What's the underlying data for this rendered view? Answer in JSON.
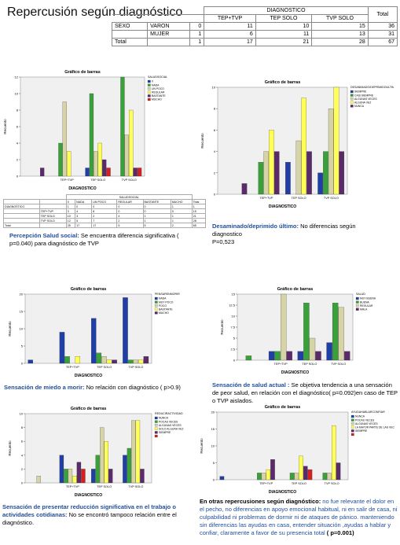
{
  "title": "Repercusión según diagnóstico",
  "crosstab": {
    "group_header": "DIAGNOSTICO",
    "columns": [
      "",
      "",
      "",
      "TEP+TVP",
      "TEP SOLO",
      "TVP SOLO",
      "Total"
    ],
    "rows": [
      [
        "SEXO",
        "VARON",
        "0",
        "11",
        "10",
        "15",
        "36"
      ],
      [
        "",
        "MUJER",
        "1",
        "6",
        "11",
        "13",
        "31"
      ],
      [
        "Total",
        "",
        "1",
        "17",
        "21",
        "28",
        "67"
      ]
    ]
  },
  "small_table": {
    "group_header": "SALUDSOCIAL",
    "columns": [
      "",
      "",
      "0",
      "NADA",
      "UN POCO",
      "REGULAR",
      "BASTANTE",
      "MUCHO",
      "Total"
    ],
    "rows": [
      [
        "DIAGNOSTICO",
        "",
        "1",
        "0",
        "0",
        "0",
        "0",
        "1",
        "1"
      ],
      [
        "",
        "TEP+TVP",
        "3",
        "4",
        "8",
        "0",
        "0",
        "0",
        "15"
      ],
      [
        "",
        "TEP SOLO",
        "10",
        "3",
        "2",
        "4",
        "1",
        "1",
        "21"
      ],
      [
        "",
        "TVP SOLO",
        "12",
        "5",
        "7",
        "2",
        "1",
        "1",
        "28"
      ],
      [
        "Total",
        "",
        "25",
        "17",
        "17",
        "5",
        "5",
        "2",
        "65"
      ]
    ]
  },
  "captions": {
    "c1_bold": "Percepción Salud social:",
    "c1_text": " Se encuentra diferencia significativa ( p=0.040) para diagnóstico de TVP",
    "c2_bold": "Desaminado/deprimido último:",
    "c2_text": " No diferencias según diagnostico",
    "c2_p": "P=0,523",
    "c3_bold": "Sensación de miedo a morir:",
    "c3_text": " No relación con diagnóstico ( p>0.9)",
    "c4_bold": "Sensación de salud actual :",
    "c4_text": " Se objetiva tendencia a una sensación de peor salud, en relación con el diagnóstico( p=0.092)en caso de TEP o TVP aislados.",
    "c5_bold": "Sensación de presentar reducción significativa en el trabajo o actividades cotidianas:",
    "c5_text": " No se encontró tampoco relación entre el diagnóstico.",
    "c6_lead": "En otras repercusiones según  diagnóstico: ",
    "c6_blue": "no fue relevante el dolor en el pecho, no diferencias en apoyo emocional  habitual, ni en salir de casa, ni culpabilidad ni problemas de dormir ni de ataques de pánico. manteniendo sin diferencias las ayudas en casa, entender situación ,ayudas a hablar y confiar, claramente a favor de su presencia total",
    "c6_end": " ( p=0.001)"
  },
  "chart_data": [
    {
      "type": "bar",
      "title": "Gráfico de barras",
      "xlabel": "DIAGNOSTICO",
      "ylabel": "Recuento",
      "ylim": [
        0,
        12
      ],
      "yticks": [
        0,
        2,
        4,
        6,
        8,
        10,
        12
      ],
      "legend_title": "SALUDSOCIAL",
      "legend_placement": "right",
      "categories": [
        "",
        "TEP+TVP",
        "TEP SOLO",
        "TVP SOLO"
      ],
      "series": [
        {
          "name": "0",
          "color": "#1f3fa6",
          "values": [
            0,
            0,
            1,
            0
          ]
        },
        {
          "name": "NADA",
          "color": "#3aa03a",
          "values": [
            0,
            4,
            10,
            12
          ]
        },
        {
          "name": "UN POCO",
          "color": "#d6d3a6",
          "values": [
            0,
            9,
            3,
            5
          ]
        },
        {
          "name": "REGULAR",
          "color": "#ffff55",
          "values": [
            0,
            3,
            4,
            8
          ]
        },
        {
          "name": "BASTANTE",
          "color": "#5a2a6a",
          "values": [
            1,
            0,
            2,
            1
          ]
        },
        {
          "name": "MUCHO",
          "color": "#d32020",
          "values": [
            0,
            0,
            1,
            1
          ]
        }
      ]
    },
    {
      "type": "bar",
      "title": "Gráfico de barras",
      "xlabel": "DIAGNOSTICO",
      "ylabel": "Recuento",
      "ylim": [
        0,
        10
      ],
      "yticks": [
        0,
        2,
        4,
        6,
        8,
        10
      ],
      "legend_title": "DESANIMADO/DEPRIMIDOULTIMO",
      "legend_placement": "top-right",
      "categories": [
        "",
        "TEP+TVP",
        "TEP SOLO",
        "TVP SOLO"
      ],
      "series": [
        {
          "name": "SIEMPRE",
          "color": "#1f3fa6",
          "values": [
            0,
            0,
            3,
            2
          ]
        },
        {
          "name": "CASI SIEMPRE",
          "color": "#3aa03a",
          "values": [
            0,
            3,
            0,
            4
          ]
        },
        {
          "name": "ALGUNAS VECES",
          "color": "#d6d3a6",
          "values": [
            0,
            4,
            5,
            8
          ]
        },
        {
          "name": "ALGUNA VEZ",
          "color": "#ffff55",
          "values": [
            0,
            6,
            9,
            10
          ]
        },
        {
          "name": "NUNCA",
          "color": "#5a2a6a",
          "values": [
            1,
            4,
            4,
            4
          ]
        }
      ]
    },
    {
      "type": "bar",
      "title": "Gráfico de barras",
      "xlabel": "DIAGNOSTICO",
      "ylabel": "Recuento",
      "ylim": [
        0,
        20
      ],
      "yticks": [
        0,
        5,
        10,
        15,
        20
      ],
      "legend_title": "PENSARENMORIR",
      "legend_placement": "right",
      "categories": [
        "",
        "TEP+TVP",
        "TEP SOLO",
        "TVP SOLO"
      ],
      "series": [
        {
          "name": "NADA",
          "color": "#1f3fa6",
          "values": [
            1,
            9,
            13,
            19
          ]
        },
        {
          "name": "MUY POCO",
          "color": "#3aa03a",
          "values": [
            0,
            2,
            3,
            1
          ]
        },
        {
          "name": "POCO",
          "color": "#d6d3a6",
          "values": [
            0,
            0,
            2,
            1
          ]
        },
        {
          "name": "BASTANTE",
          "color": "#ffff55",
          "values": [
            0,
            2,
            1,
            1
          ]
        },
        {
          "name": "MUCHO",
          "color": "#5a2a6a",
          "values": [
            0,
            0,
            1,
            2
          ]
        }
      ]
    },
    {
      "type": "bar",
      "title": "Gráfico de barras",
      "xlabel": "DIAGNOSTICO",
      "ylabel": "Recuento",
      "ylim": [
        0,
        15
      ],
      "yticks": [
        0,
        2.5,
        5,
        7.5,
        10,
        12.5,
        15
      ],
      "legend_title": "SALUD",
      "legend_placement": "right",
      "categories": [
        "",
        "TEP+TVP",
        "TEP SOLO",
        "TVP SOLO"
      ],
      "series": [
        {
          "name": "MUY BUENA",
          "color": "#1f3fa6",
          "values": [
            0,
            2,
            2,
            4
          ]
        },
        {
          "name": "BUENA",
          "color": "#3aa03a",
          "values": [
            1,
            2,
            13,
            13
          ]
        },
        {
          "name": "REGULAR",
          "color": "#d6d3a6",
          "values": [
            0,
            15,
            5,
            12
          ]
        },
        {
          "name": "MALA",
          "color": "#5a2a6a",
          "values": [
            0,
            2,
            2,
            2
          ]
        }
      ]
    },
    {
      "type": "bar",
      "title": "Gráfico de barras",
      "xlabel": "DIAGNOSTICO",
      "ylabel": "Recuento",
      "ylim": [
        0,
        10
      ],
      "yticks": [
        0,
        2,
        4,
        6,
        8,
        10
      ],
      "legend_title": "REDUCIRACTIVIDAD",
      "legend_placement": "right",
      "categories": [
        "",
        "TEP+TVP",
        "TEP SOLO",
        "TVP SOLO"
      ],
      "series": [
        {
          "name": "NUNCA",
          "color": "#1f3fa6",
          "values": [
            0,
            4,
            2,
            4
          ]
        },
        {
          "name": "POCAS VECES",
          "color": "#3aa03a",
          "values": [
            0,
            2,
            4,
            5
          ]
        },
        {
          "name": "ALGUNAS VECES",
          "color": "#d6d3a6",
          "values": [
            1,
            2,
            8,
            9
          ]
        },
        {
          "name": "SOLO ALGUNA VEZ",
          "color": "#ffff55",
          "values": [
            0,
            1,
            6,
            9
          ]
        },
        {
          "name": "SIEMPRE",
          "color": "#5a2a6a",
          "values": [
            0,
            3,
            2,
            2
          ]
        },
        {
          "name": "",
          "color": "#d32020",
          "values": [
            0,
            2,
            0,
            0
          ]
        }
      ]
    },
    {
      "type": "bar",
      "title": "Gráfico de barras",
      "xlabel": "DIAGNOSTICO",
      "ylabel": "Recuento",
      "ylim": [
        0,
        20
      ],
      "yticks": [
        0,
        5,
        10,
        15,
        20
      ],
      "legend_title": "AYUDAHABLARCONFIAR",
      "legend_placement": "top-right",
      "categories": [
        "",
        "TEP+TVP",
        "TEP SOLO",
        "TVP SOLO"
      ],
      "series": [
        {
          "name": "NUNCA",
          "color": "#1f3fa6",
          "values": [
            1,
            0,
            0,
            0
          ]
        },
        {
          "name": "POCAS VECES",
          "color": "#3aa03a",
          "values": [
            0,
            2,
            2,
            2
          ]
        },
        {
          "name": "ALGUNAS VECES",
          "color": "#d6d3a6",
          "values": [
            0,
            2,
            2,
            2
          ]
        },
        {
          "name": "LA MAYOR PARTE DE LAS VECES",
          "color": "#ffff55",
          "values": [
            0,
            3,
            7,
            16
          ]
        },
        {
          "name": "SIEMPRE",
          "color": "#5a2a6a",
          "values": [
            0,
            6,
            4,
            5
          ]
        },
        {
          "name": "",
          "color": "#d32020",
          "values": [
            0,
            0,
            3,
            0
          ]
        }
      ]
    }
  ]
}
